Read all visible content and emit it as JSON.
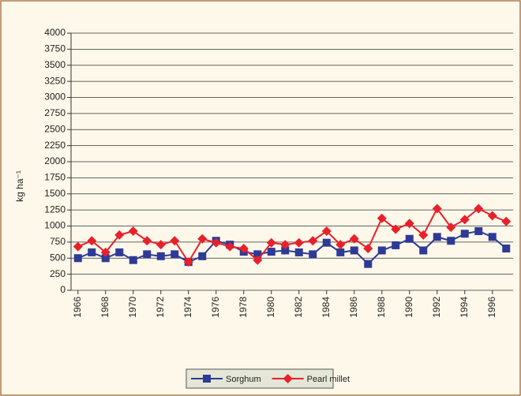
{
  "chart_data": {
    "type": "line",
    "ylabel": "kg ha⁻¹",
    "x": [
      1966,
      1967,
      1968,
      1969,
      1970,
      1971,
      1972,
      1973,
      1974,
      1975,
      1976,
      1977,
      1978,
      1979,
      1980,
      1981,
      1982,
      1983,
      1984,
      1985,
      1986,
      1987,
      1988,
      1989,
      1990,
      1991,
      1992,
      1993,
      1994,
      1995,
      1996,
      1997
    ],
    "xlim": [
      1965.5,
      1997.5
    ],
    "xticks": [
      1966,
      1968,
      1970,
      1972,
      1974,
      1976,
      1978,
      1980,
      1982,
      1984,
      1986,
      1988,
      1990,
      1992,
      1994,
      1996
    ],
    "ylim": [
      0,
      4000
    ],
    "yticks": [
      0,
      250,
      500,
      750,
      1000,
      1250,
      1500,
      1750,
      2000,
      2250,
      2500,
      2750,
      3000,
      3250,
      3500,
      3750,
      4000
    ],
    "grid": true,
    "series": [
      {
        "name": "Sorghum",
        "color": "#2e3a96",
        "marker": "square",
        "values": [
          500,
          590,
          500,
          590,
          470,
          560,
          530,
          560,
          440,
          530,
          770,
          710,
          600,
          560,
          600,
          620,
          590,
          560,
          740,
          590,
          620,
          410,
          620,
          700,
          800,
          620,
          830,
          770,
          880,
          920,
          830,
          650
        ]
      },
      {
        "name": "Pearl millet",
        "color": "#e8202a",
        "marker": "diamond",
        "values": [
          680,
          770,
          590,
          860,
          920,
          770,
          710,
          770,
          440,
          800,
          740,
          680,
          650,
          470,
          740,
          710,
          740,
          770,
          920,
          710,
          800,
          650,
          1120,
          950,
          1040,
          860,
          1270,
          980,
          1100,
          1270,
          1160,
          1070
        ]
      }
    ]
  }
}
